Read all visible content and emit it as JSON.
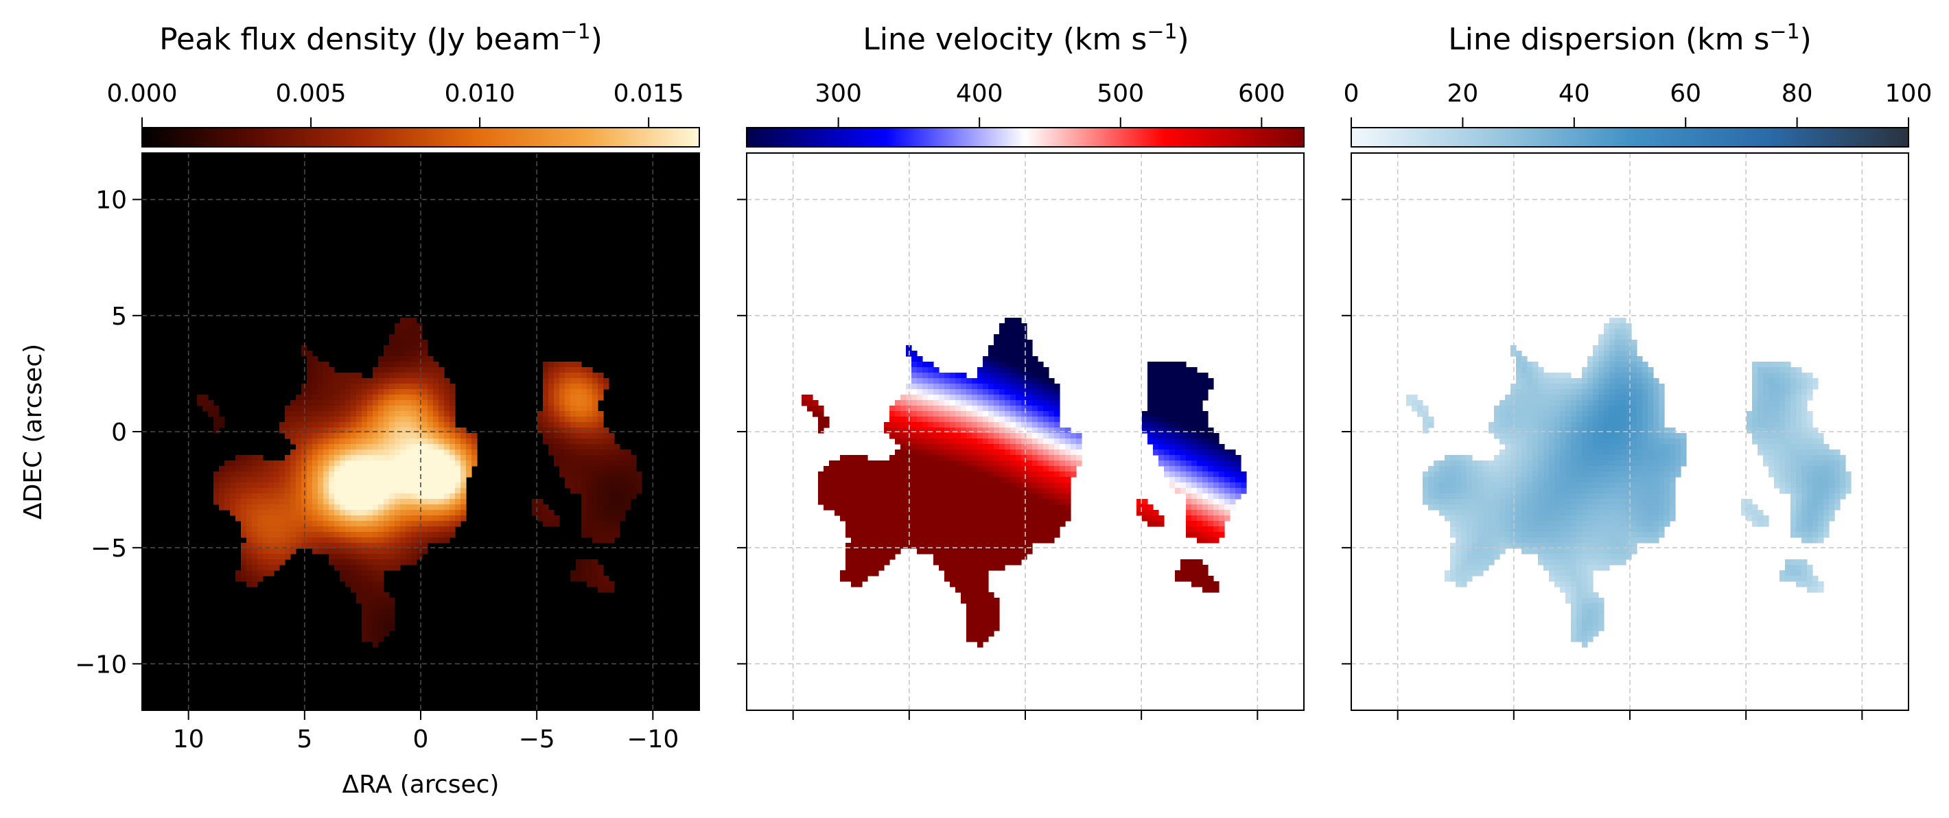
{
  "chart_data": [
    {
      "type": "heatmap",
      "title": "Peak flux density (Jy beam⁻¹)",
      "title_text": "Peak flux density (Jy beam",
      "title_sup": "−1",
      "title_end": ")",
      "colormap": "afmhot",
      "colorbar": {
        "range": [
          0,
          0.0165
        ],
        "ticks": [
          0.0,
          0.005,
          0.01,
          0.015
        ],
        "tick_labels": [
          "0.000",
          "0.005",
          "0.010",
          "0.015"
        ],
        "stops": [
          "#000000",
          "#5a0a00",
          "#a62b05",
          "#e36c0c",
          "#f5a845",
          "#fff8d8"
        ]
      },
      "xlabel": "ΔRA (arcsec)",
      "ylabel": "ΔDEC (arcsec)",
      "xlim": [
        12,
        -12
      ],
      "ylim": [
        -12,
        12
      ],
      "x_ticks": [
        10,
        5,
        0,
        -5,
        -10
      ],
      "x_tick_labels": [
        "10",
        "5",
        "0",
        "−5",
        "−10"
      ],
      "y_ticks": [
        10,
        5,
        0,
        -5,
        -10
      ],
      "y_tick_labels": [
        "10",
        "5",
        "0",
        "−5",
        "−10"
      ],
      "background": "#000000",
      "grid": true
    },
    {
      "type": "heatmap",
      "title_text": "Line velocity (km s",
      "title_sup": "−1",
      "title_end": ")",
      "colormap": "seismic",
      "colorbar": {
        "range": [
          235,
          630
        ],
        "ticks": [
          300,
          400,
          500,
          600
        ],
        "tick_labels": [
          "300",
          "400",
          "500",
          "600"
        ],
        "stops": [
          "#00004a",
          "#0000ff",
          "#ffffff",
          "#ff0000",
          "#800000"
        ]
      },
      "xlim": [
        12,
        -12
      ],
      "ylim": [
        -12,
        12
      ],
      "background": "#ffffff",
      "grid": true
    },
    {
      "type": "heatmap",
      "title_text": "Line dispersion (km s",
      "title_sup": "−1",
      "title_end": ")",
      "colormap": "Blues",
      "colorbar": {
        "range": [
          0,
          100
        ],
        "ticks": [
          0,
          20,
          40,
          60,
          80,
          100
        ],
        "tick_labels": [
          "0",
          "20",
          "40",
          "60",
          "80",
          "100"
        ],
        "stops": [
          "#f2f8fd",
          "#9ecae1",
          "#4292c6",
          "#2a6aa8",
          "#2a3340"
        ]
      },
      "xlim": [
        12,
        -12
      ],
      "ylim": [
        -12,
        12
      ],
      "background": "#ffffff",
      "grid": true
    }
  ],
  "emission": {
    "main_region": [
      [
        5.1,
        3.8
      ],
      [
        4.3,
        3.1
      ],
      [
        3.6,
        2.5
      ],
      [
        2.2,
        2.4
      ],
      [
        1.4,
        3.8
      ],
      [
        0.9,
        4.8
      ],
      [
        0.1,
        4.8
      ],
      [
        -0.4,
        3.3
      ],
      [
        -1.4,
        2.0
      ],
      [
        -1.5,
        0.2
      ],
      [
        -2.5,
        -0.2
      ],
      [
        -2.4,
        -1.3
      ],
      [
        -1.9,
        -2.2
      ],
      [
        -1.9,
        -3.7
      ],
      [
        -1.2,
        -4.7
      ],
      [
        -0.3,
        -4.8
      ],
      [
        -0.1,
        -5.5
      ],
      [
        0.6,
        -5.8
      ],
      [
        1.6,
        -6.0
      ],
      [
        1.6,
        -6.9
      ],
      [
        1.0,
        -7.4
      ],
      [
        1.2,
        -8.5
      ],
      [
        1.9,
        -9.2
      ],
      [
        2.5,
        -9.1
      ],
      [
        2.7,
        -7.0
      ],
      [
        3.3,
        -6.5
      ],
      [
        4.1,
        -5.3
      ],
      [
        5.4,
        -5.0
      ],
      [
        5.9,
        -5.8
      ],
      [
        6.8,
        -6.3
      ],
      [
        7.2,
        -6.8
      ],
      [
        7.9,
        -6.3
      ],
      [
        7.6,
        -4.6
      ],
      [
        7.9,
        -3.8
      ],
      [
        8.9,
        -3.0
      ],
      [
        9.0,
        -2.0
      ],
      [
        8.2,
        -1.2
      ],
      [
        7.6,
        -0.9
      ],
      [
        6.8,
        -1.1
      ],
      [
        5.9,
        -1.3
      ],
      [
        5.4,
        -0.7
      ],
      [
        6.0,
        0.0
      ],
      [
        5.9,
        1.0
      ],
      [
        4.9,
        2.1
      ],
      [
        5.0,
        3.0
      ]
    ],
    "west_region": [
      [
        -5.3,
        3.0
      ],
      [
        -5.3,
        1.7
      ],
      [
        -5.0,
        0.2
      ],
      [
        -5.6,
        -1.0
      ],
      [
        -6.2,
        -2.3
      ],
      [
        -7.0,
        -2.9
      ],
      [
        -6.9,
        -4.4
      ],
      [
        -7.7,
        -4.9
      ],
      [
        -8.4,
        -4.6
      ],
      [
        -8.8,
        -3.6
      ],
      [
        -9.5,
        -2.4
      ],
      [
        -9.3,
        -1.2
      ],
      [
        -8.5,
        -0.5
      ],
      [
        -7.8,
        0.3
      ],
      [
        -7.7,
        1.4
      ],
      [
        -8.2,
        2.2
      ],
      [
        -6.9,
        2.9
      ]
    ],
    "small_nw": [
      [
        9.5,
        1.6
      ],
      [
        9.0,
        1.4
      ],
      [
        8.3,
        0.2
      ],
      [
        8.8,
        0.0
      ],
      [
        9.0,
        0.6
      ],
      [
        9.6,
        1.3
      ]
    ],
    "small_w": [
      [
        -4.9,
        -2.9
      ],
      [
        -5.3,
        -3.0
      ],
      [
        -6.1,
        -3.8
      ],
      [
        -5.6,
        -4.2
      ],
      [
        -4.8,
        -3.4
      ]
    ],
    "small_sw": [
      [
        -6.6,
        -5.6
      ],
      [
        -7.6,
        -5.5
      ],
      [
        -8.0,
        -6.2
      ],
      [
        -8.4,
        -6.7
      ],
      [
        -7.9,
        -7.0
      ],
      [
        -7.2,
        -6.6
      ],
      [
        -6.5,
        -6.3
      ]
    ],
    "flux_peaks": [
      [
        -0.8,
        -1.8,
        0.016,
        1.3
      ],
      [
        2.3,
        -2.8,
        0.011,
        1.4
      ],
      [
        0.7,
        0.8,
        0.008,
        1.2
      ],
      [
        3.3,
        -1.5,
        0.008,
        1.5
      ],
      [
        -6.8,
        1.3,
        0.008,
        1.1
      ],
      [
        6.5,
        -3.8,
        0.006,
        1.5
      ]
    ],
    "velocity_field": {
      "systemic": 435,
      "gradient": 42,
      "angle_deg": 20
    },
    "dispersion_field": {
      "base": 32,
      "peak": [
        -0.6,
        -0.2,
        18,
        2.2
      ]
    }
  }
}
